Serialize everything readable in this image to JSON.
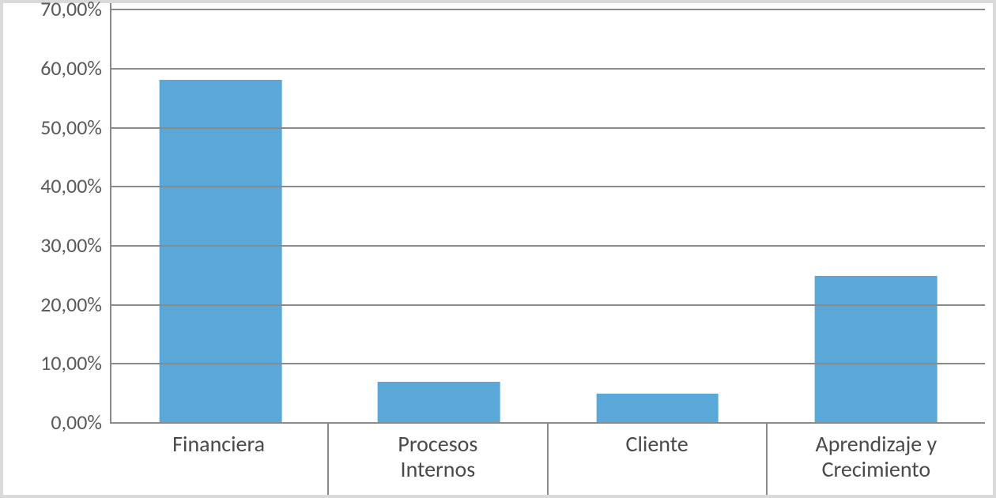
{
  "chart": {
    "type": "bar",
    "background_color": "#ffffff",
    "border_color": "#dadada",
    "axis_color": "#8a8a8a",
    "grid_color": "#8a8a8a",
    "tick_label_color": "#5a5a5a",
    "x_label_color": "#4a4a4a",
    "tick_label_fontsize": 26,
    "x_label_fontsize": 28,
    "y_visible_min": 0,
    "y_visible_max": 71,
    "y_ticks": [
      {
        "value": 0,
        "label": "0,00%"
      },
      {
        "value": 10,
        "label": "10,00%"
      },
      {
        "value": 20,
        "label": "20,00%"
      },
      {
        "value": 30,
        "label": "30,00%"
      },
      {
        "value": 40,
        "label": "40,00%"
      },
      {
        "value": 50,
        "label": "50,00%"
      },
      {
        "value": 60,
        "label": "60,00%"
      },
      {
        "value": 70,
        "label": "70,00%"
      }
    ],
    "categories": [
      {
        "label_line1": "Financiera",
        "label_line2": "",
        "value": 58
      },
      {
        "label_line1": "Procesos",
        "label_line2": "Internos",
        "value": 6.8
      },
      {
        "label_line1": "Cliente",
        "label_line2": "",
        "value": 4.8
      },
      {
        "label_line1": "Aprendizaje y",
        "label_line2": "Crecimiento",
        "value": 24.8
      }
    ],
    "bar_color": "#5aa8d8",
    "bar_width_ratio": 0.56
  }
}
